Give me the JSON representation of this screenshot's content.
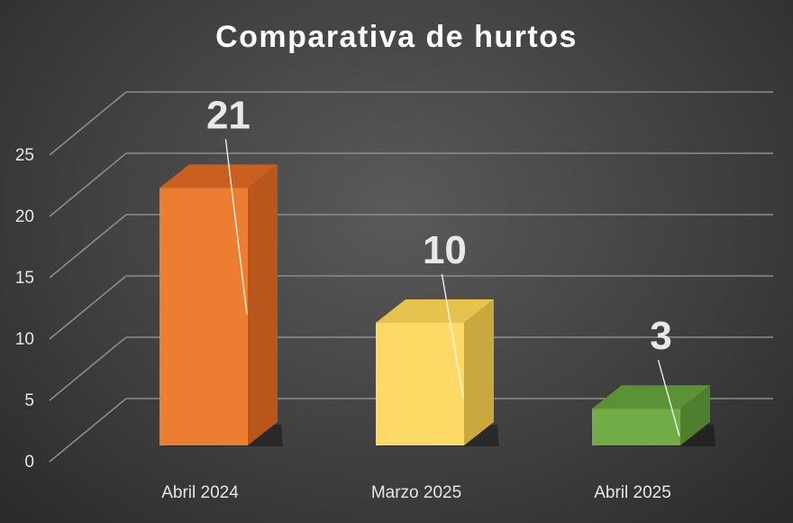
{
  "chart_data": {
    "type": "bar",
    "title": "Comparativa de hurtos",
    "categories": [
      "Abril 2024",
      "Marzo 2025",
      "Abril 2025"
    ],
    "values": [
      21,
      10,
      3
    ],
    "data_labels": [
      "21",
      "10",
      "3"
    ],
    "ylim": [
      0,
      25
    ],
    "yticks": [
      "0",
      "5",
      "10",
      "15",
      "20",
      "25"
    ],
    "grid": true,
    "style": "3d-column",
    "colors": {
      "bars": [
        {
          "front": "#ed7d31",
          "side": "#b8561b",
          "top": "#c9601f"
        },
        {
          "front": "#ffd966",
          "side": "#c9a93e",
          "top": "#e6c24e"
        },
        {
          "front": "#70ad47",
          "side": "#4e7f2e",
          "top": "#5b9236"
        }
      ],
      "grid": "#8c8c8c",
      "label_text": "#e8e8e8"
    }
  }
}
